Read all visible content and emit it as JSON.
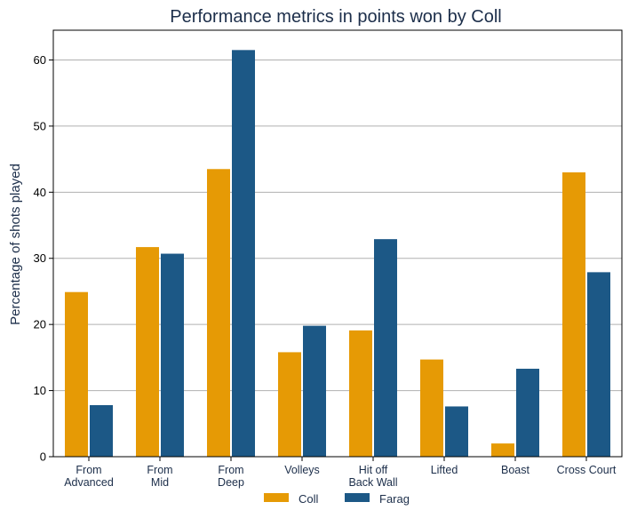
{
  "chart_data": {
    "type": "bar",
    "title": "Performance metrics in points won by Coll",
    "xlabel": "",
    "ylabel": "Percentage of shots played",
    "ylim": [
      0,
      64.5
    ],
    "yticks": [
      0,
      10,
      20,
      30,
      40,
      50,
      60
    ],
    "grid": true,
    "legend_position": "bottom-center",
    "categories": [
      [
        "From",
        "Advanced"
      ],
      [
        "From",
        "Mid"
      ],
      [
        "From",
        "Deep"
      ],
      [
        "Volleys"
      ],
      [
        "Hit off",
        "Back Wall"
      ],
      [
        "Lifted"
      ],
      [
        "Boast"
      ],
      [
        "Cross Court"
      ]
    ],
    "series": [
      {
        "name": "Coll",
        "color": "#e69a05",
        "values": [
          24.9,
          31.7,
          43.5,
          15.8,
          19.1,
          14.7,
          2.0,
          43.0
        ]
      },
      {
        "name": "Farag",
        "color": "#1c5886",
        "values": [
          7.8,
          30.7,
          61.5,
          19.8,
          32.9,
          7.6,
          13.3,
          27.9
        ]
      }
    ]
  }
}
